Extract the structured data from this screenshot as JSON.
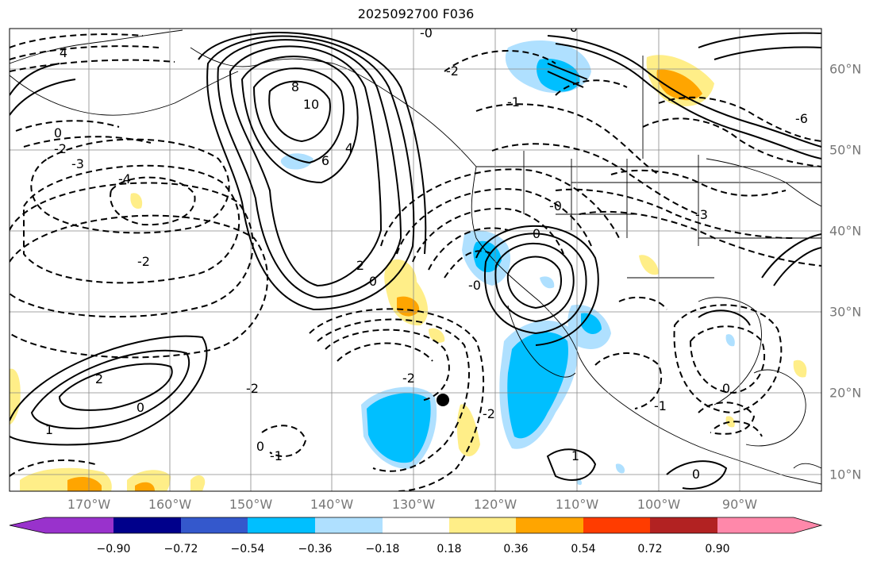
{
  "title": "2025092700 F036",
  "lon_labels": [
    "170°W",
    "160°W",
    "150°W",
    "140°W",
    "130°W",
    "120°W",
    "110°W",
    "100°W",
    "90°W"
  ],
  "lat_labels": [
    "60°N",
    "50°N",
    "40°N",
    "30°N",
    "20°N",
    "10°N"
  ],
  "colorbar": {
    "ticks": [
      "−0.90",
      "−0.72",
      "−0.54",
      "−0.36",
      "−0.18",
      "0.18",
      "0.36",
      "0.54",
      "0.72",
      "0.90"
    ],
    "colors": [
      "#9932cc",
      "#00008b",
      "#3458cc",
      "#00bfff",
      "#afe0ff",
      "#ffffff",
      "#ffee88",
      "#ffa500",
      "#ff3c00",
      "#b22222",
      "#ff88aa"
    ]
  },
  "contour_labels": [
    "8",
    "10",
    "6",
    "4",
    "2",
    "0",
    "-2",
    "-3",
    "-4",
    "1",
    "-1",
    "-0",
    "-6"
  ],
  "marker": "black-dot"
}
